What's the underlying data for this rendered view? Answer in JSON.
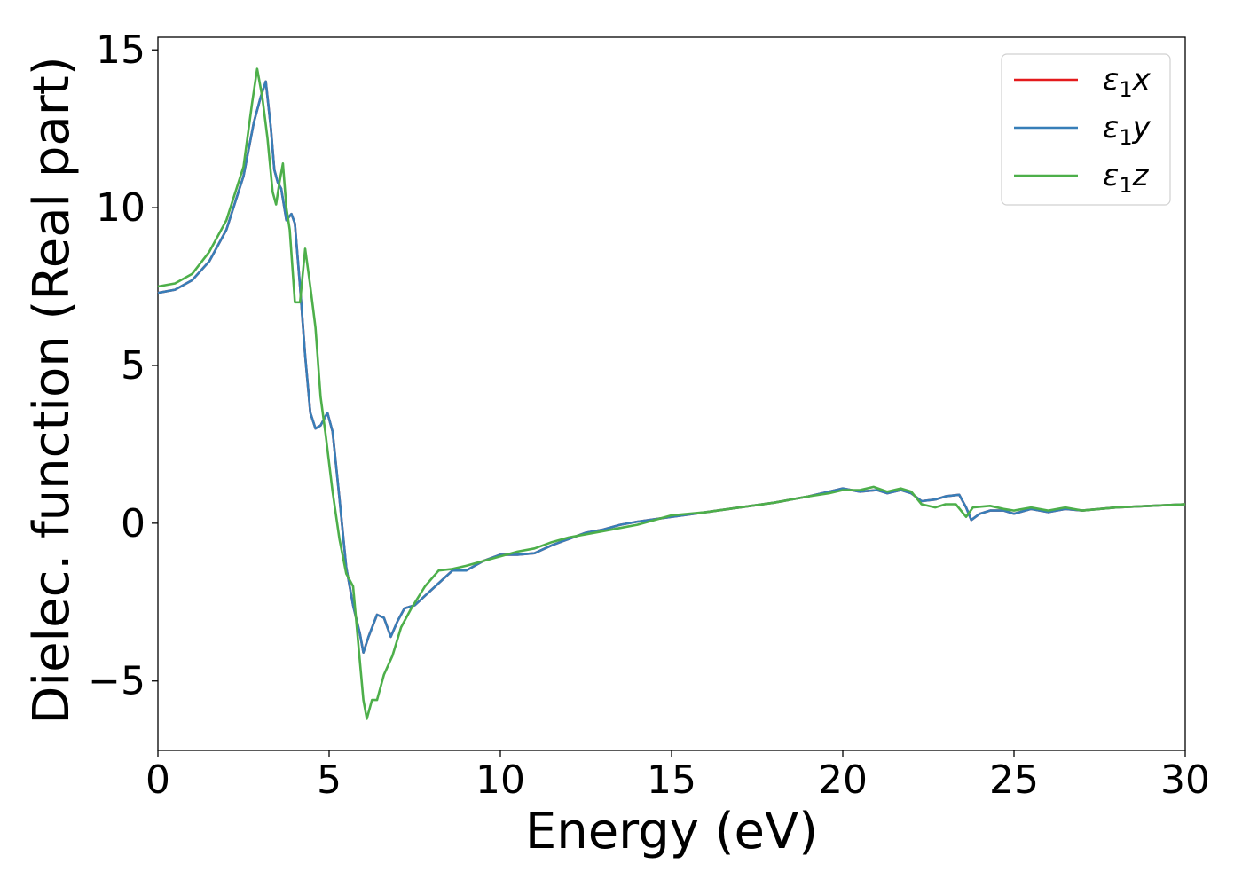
{
  "chart_data": {
    "type": "line",
    "title": "",
    "xlabel": "Energy (eV)",
    "ylabel": "Dielec. function (Real part)",
    "xlim": [
      0,
      30
    ],
    "ylim": [
      -7.2,
      15.4
    ],
    "xticks": [
      0,
      5,
      10,
      15,
      20,
      25,
      30
    ],
    "xtick_labels": [
      "0",
      "5",
      "10",
      "15",
      "20",
      "25",
      "30"
    ],
    "yticks": [
      -5,
      0,
      5,
      10,
      15
    ],
    "ytick_labels": [
      "−5",
      "0",
      "5",
      "10",
      "15"
    ],
    "grid": false,
    "legend_position": "top-right",
    "series": [
      {
        "name": "ε1x",
        "legend": {
          "base": "ε",
          "sub": "1",
          "suffix": "x"
        },
        "color": "#e41a1c",
        "points": [
          [
            0,
            7.3
          ],
          [
            0.5,
            7.4
          ],
          [
            1.0,
            7.7
          ],
          [
            1.5,
            8.3
          ],
          [
            2.0,
            9.3
          ],
          [
            2.5,
            11.0
          ],
          [
            2.8,
            12.7
          ],
          [
            3.0,
            13.5
          ],
          [
            3.15,
            14.0
          ],
          [
            3.3,
            12.5
          ],
          [
            3.4,
            11.2
          ],
          [
            3.5,
            10.8
          ],
          [
            3.6,
            10.6
          ],
          [
            3.75,
            9.6
          ],
          [
            3.9,
            9.8
          ],
          [
            4.0,
            9.5
          ],
          [
            4.15,
            7.5
          ],
          [
            4.3,
            5.3
          ],
          [
            4.45,
            3.5
          ],
          [
            4.6,
            3.0
          ],
          [
            4.75,
            3.1
          ],
          [
            4.95,
            3.5
          ],
          [
            5.1,
            2.9
          ],
          [
            5.3,
            0.8
          ],
          [
            5.5,
            -1.4
          ],
          [
            5.7,
            -2.6
          ],
          [
            5.9,
            -3.5
          ],
          [
            6.0,
            -4.1
          ],
          [
            6.15,
            -3.6
          ],
          [
            6.4,
            -2.9
          ],
          [
            6.6,
            -3.0
          ],
          [
            6.8,
            -3.6
          ],
          [
            7.0,
            -3.1
          ],
          [
            7.2,
            -2.7
          ],
          [
            7.5,
            -2.6
          ],
          [
            7.8,
            -2.3
          ],
          [
            8.2,
            -1.9
          ],
          [
            8.6,
            -1.5
          ],
          [
            9.0,
            -1.5
          ],
          [
            9.5,
            -1.2
          ],
          [
            10.0,
            -1.0
          ],
          [
            10.5,
            -1.0
          ],
          [
            11.0,
            -0.95
          ],
          [
            11.5,
            -0.7
          ],
          [
            12.0,
            -0.5
          ],
          [
            12.5,
            -0.3
          ],
          [
            13.0,
            -0.2
          ],
          [
            13.5,
            -0.05
          ],
          [
            14.0,
            0.05
          ],
          [
            15.0,
            0.2
          ],
          [
            16.0,
            0.35
          ],
          [
            17.0,
            0.5
          ],
          [
            18.0,
            0.65
          ],
          [
            19.0,
            0.85
          ],
          [
            19.6,
            1.0
          ],
          [
            20.0,
            1.1
          ],
          [
            20.5,
            1.0
          ],
          [
            21.0,
            1.05
          ],
          [
            21.3,
            0.95
          ],
          [
            21.7,
            1.05
          ],
          [
            22.0,
            0.95
          ],
          [
            22.3,
            0.7
          ],
          [
            22.7,
            0.75
          ],
          [
            23.0,
            0.85
          ],
          [
            23.4,
            0.9
          ],
          [
            23.6,
            0.5
          ],
          [
            23.75,
            0.1
          ],
          [
            24.0,
            0.3
          ],
          [
            24.3,
            0.4
          ],
          [
            24.7,
            0.4
          ],
          [
            25.0,
            0.3
          ],
          [
            25.5,
            0.45
          ],
          [
            26.0,
            0.35
          ],
          [
            26.5,
            0.45
          ],
          [
            27.0,
            0.4
          ],
          [
            27.5,
            0.45
          ],
          [
            28.0,
            0.5
          ],
          [
            29.0,
            0.55
          ],
          [
            30.0,
            0.6
          ]
        ]
      },
      {
        "name": "ε1y",
        "legend": {
          "base": "ε",
          "sub": "1",
          "suffix": "y"
        },
        "color": "#377eb8",
        "points": [
          [
            0,
            7.3
          ],
          [
            0.5,
            7.4
          ],
          [
            1.0,
            7.7
          ],
          [
            1.5,
            8.3
          ],
          [
            2.0,
            9.3
          ],
          [
            2.5,
            11.0
          ],
          [
            2.8,
            12.7
          ],
          [
            3.0,
            13.5
          ],
          [
            3.15,
            14.0
          ],
          [
            3.3,
            12.5
          ],
          [
            3.4,
            11.2
          ],
          [
            3.5,
            10.8
          ],
          [
            3.6,
            10.6
          ],
          [
            3.75,
            9.6
          ],
          [
            3.9,
            9.8
          ],
          [
            4.0,
            9.5
          ],
          [
            4.15,
            7.5
          ],
          [
            4.3,
            5.3
          ],
          [
            4.45,
            3.5
          ],
          [
            4.6,
            3.0
          ],
          [
            4.75,
            3.1
          ],
          [
            4.95,
            3.5
          ],
          [
            5.1,
            2.9
          ],
          [
            5.3,
            0.8
          ],
          [
            5.5,
            -1.4
          ],
          [
            5.7,
            -2.6
          ],
          [
            5.9,
            -3.5
          ],
          [
            6.0,
            -4.1
          ],
          [
            6.15,
            -3.6
          ],
          [
            6.4,
            -2.9
          ],
          [
            6.6,
            -3.0
          ],
          [
            6.8,
            -3.6
          ],
          [
            7.0,
            -3.1
          ],
          [
            7.2,
            -2.7
          ],
          [
            7.5,
            -2.6
          ],
          [
            7.8,
            -2.3
          ],
          [
            8.2,
            -1.9
          ],
          [
            8.6,
            -1.5
          ],
          [
            9.0,
            -1.5
          ],
          [
            9.5,
            -1.2
          ],
          [
            10.0,
            -1.0
          ],
          [
            10.5,
            -1.0
          ],
          [
            11.0,
            -0.95
          ],
          [
            11.5,
            -0.7
          ],
          [
            12.0,
            -0.5
          ],
          [
            12.5,
            -0.3
          ],
          [
            13.0,
            -0.2
          ],
          [
            13.5,
            -0.05
          ],
          [
            14.0,
            0.05
          ],
          [
            15.0,
            0.2
          ],
          [
            16.0,
            0.35
          ],
          [
            17.0,
            0.5
          ],
          [
            18.0,
            0.65
          ],
          [
            19.0,
            0.85
          ],
          [
            19.6,
            1.0
          ],
          [
            20.0,
            1.1
          ],
          [
            20.5,
            1.0
          ],
          [
            21.0,
            1.05
          ],
          [
            21.3,
            0.95
          ],
          [
            21.7,
            1.05
          ],
          [
            22.0,
            0.95
          ],
          [
            22.3,
            0.7
          ],
          [
            22.7,
            0.75
          ],
          [
            23.0,
            0.85
          ],
          [
            23.4,
            0.9
          ],
          [
            23.6,
            0.5
          ],
          [
            23.75,
            0.1
          ],
          [
            24.0,
            0.3
          ],
          [
            24.3,
            0.4
          ],
          [
            24.7,
            0.4
          ],
          [
            25.0,
            0.3
          ],
          [
            25.5,
            0.45
          ],
          [
            26.0,
            0.35
          ],
          [
            26.5,
            0.45
          ],
          [
            27.0,
            0.4
          ],
          [
            27.5,
            0.45
          ],
          [
            28.0,
            0.5
          ],
          [
            29.0,
            0.55
          ],
          [
            30.0,
            0.6
          ]
        ]
      },
      {
        "name": "ε1z",
        "legend": {
          "base": "ε",
          "sub": "1",
          "suffix": "z"
        },
        "color": "#4daf4a",
        "points": [
          [
            0,
            7.5
          ],
          [
            0.5,
            7.6
          ],
          [
            1.0,
            7.9
          ],
          [
            1.5,
            8.6
          ],
          [
            2.0,
            9.6
          ],
          [
            2.5,
            11.3
          ],
          [
            2.75,
            13.3
          ],
          [
            2.9,
            14.4
          ],
          [
            3.05,
            13.5
          ],
          [
            3.2,
            12.2
          ],
          [
            3.35,
            10.5
          ],
          [
            3.45,
            10.1
          ],
          [
            3.55,
            10.8
          ],
          [
            3.65,
            11.4
          ],
          [
            3.75,
            10.0
          ],
          [
            3.85,
            9.3
          ],
          [
            4.0,
            7.0
          ],
          [
            4.15,
            7.0
          ],
          [
            4.3,
            8.7
          ],
          [
            4.45,
            7.5
          ],
          [
            4.6,
            6.2
          ],
          [
            4.75,
            4.0
          ],
          [
            4.9,
            2.8
          ],
          [
            5.1,
            1.0
          ],
          [
            5.3,
            -0.5
          ],
          [
            5.5,
            -1.6
          ],
          [
            5.7,
            -2.0
          ],
          [
            5.85,
            -3.8
          ],
          [
            6.0,
            -5.6
          ],
          [
            6.1,
            -6.2
          ],
          [
            6.25,
            -5.6
          ],
          [
            6.4,
            -5.6
          ],
          [
            6.6,
            -4.8
          ],
          [
            6.85,
            -4.2
          ],
          [
            7.1,
            -3.3
          ],
          [
            7.4,
            -2.7
          ],
          [
            7.8,
            -2.0
          ],
          [
            8.2,
            -1.5
          ],
          [
            8.6,
            -1.45
          ],
          [
            9.0,
            -1.35
          ],
          [
            9.5,
            -1.2
          ],
          [
            10.0,
            -1.05
          ],
          [
            10.5,
            -0.9
          ],
          [
            11.0,
            -0.8
          ],
          [
            11.5,
            -0.6
          ],
          [
            12.0,
            -0.45
          ],
          [
            12.5,
            -0.35
          ],
          [
            13.0,
            -0.25
          ],
          [
            13.5,
            -0.15
          ],
          [
            14.0,
            -0.05
          ],
          [
            15.0,
            0.25
          ],
          [
            16.0,
            0.35
          ],
          [
            17.0,
            0.5
          ],
          [
            18.0,
            0.65
          ],
          [
            19.0,
            0.85
          ],
          [
            19.6,
            0.95
          ],
          [
            20.0,
            1.05
          ],
          [
            20.5,
            1.05
          ],
          [
            20.9,
            1.15
          ],
          [
            21.3,
            1.0
          ],
          [
            21.7,
            1.1
          ],
          [
            22.0,
            1.0
          ],
          [
            22.3,
            0.6
          ],
          [
            22.7,
            0.5
          ],
          [
            23.0,
            0.6
          ],
          [
            23.3,
            0.6
          ],
          [
            23.6,
            0.2
          ],
          [
            23.8,
            0.5
          ],
          [
            24.3,
            0.55
          ],
          [
            24.7,
            0.45
          ],
          [
            25.0,
            0.4
          ],
          [
            25.5,
            0.5
          ],
          [
            26.0,
            0.4
          ],
          [
            26.5,
            0.5
          ],
          [
            27.0,
            0.4
          ],
          [
            27.5,
            0.45
          ],
          [
            28.0,
            0.5
          ],
          [
            29.0,
            0.55
          ],
          [
            30.0,
            0.6
          ]
        ]
      }
    ]
  }
}
